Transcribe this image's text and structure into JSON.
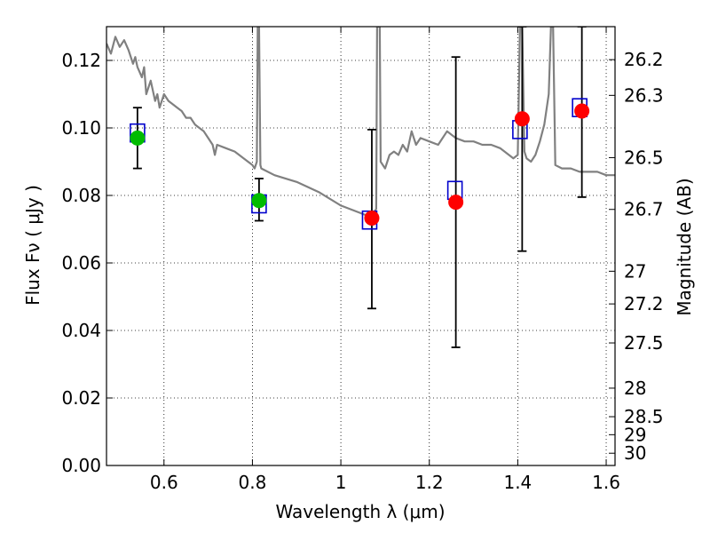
{
  "chart_data": {
    "type": "scatter",
    "xlabel": "Wavelength  λ (μm)",
    "ylabel": "Flux  Fν  ( μJy )",
    "y2label": "Magnitude (AB)",
    "xlim": [
      0.47,
      1.62
    ],
    "ylim": [
      0.0,
      0.13
    ],
    "xticks": [
      0.6,
      0.8,
      1.0,
      1.2,
      1.4,
      1.6
    ],
    "xtick_labels": [
      "0.6",
      "0.8",
      "1",
      "1.2",
      "1.4",
      "1.6"
    ],
    "yticks": [
      0.0,
      0.02,
      0.04,
      0.06,
      0.08,
      0.1,
      0.12
    ],
    "ytick_labels": [
      "0.00",
      "0.02",
      "0.04",
      "0.06",
      "0.08",
      "0.10",
      "0.12"
    ],
    "magnitude_ticks": [
      "26.2",
      "26.3",
      "26.5",
      "26.7",
      "27",
      "27.2",
      "27.5",
      "28",
      "28.5",
      "29",
      "30"
    ],
    "grid": true,
    "colors": {
      "template": "#808080",
      "photometry_green": "#00bb00",
      "photometry_red": "#ff0000",
      "model": "#0000cc",
      "errorbar": "#000000",
      "grid": "#000000"
    },
    "series": [
      {
        "name": "photometry-green",
        "marker": "circle",
        "x": [
          0.54,
          0.815
        ],
        "y": [
          0.097,
          0.0785
        ],
        "yerr_low": [
          0.088,
          0.0725
        ],
        "yerr_high": [
          0.106,
          0.085
        ]
      },
      {
        "name": "photometry-red",
        "marker": "circle",
        "x": [
          1.07,
          1.26,
          1.41,
          1.545
        ],
        "y": [
          0.0733,
          0.078,
          0.1027,
          0.105
        ],
        "yerr_low": [
          0.0465,
          0.035,
          0.0635,
          0.0795
        ],
        "yerr_high": [
          0.0995,
          0.121,
          0.13,
          0.13
        ]
      },
      {
        "name": "model-fluxes",
        "marker": "square",
        "x": [
          0.54,
          0.815,
          1.065,
          1.258,
          1.405,
          1.54
        ],
        "y": [
          0.0985,
          0.0775,
          0.0727,
          0.0815,
          0.0995,
          0.106
        ]
      },
      {
        "name": "template-spectrum",
        "style": "line",
        "points": [
          [
            0.47,
            0.125
          ],
          [
            0.48,
            0.122
          ],
          [
            0.49,
            0.127
          ],
          [
            0.5,
            0.124
          ],
          [
            0.51,
            0.126
          ],
          [
            0.52,
            0.123
          ],
          [
            0.53,
            0.119
          ],
          [
            0.535,
            0.121
          ],
          [
            0.54,
            0.118
          ],
          [
            0.55,
            0.115
          ],
          [
            0.555,
            0.118
          ],
          [
            0.56,
            0.11
          ],
          [
            0.57,
            0.114
          ],
          [
            0.58,
            0.108
          ],
          [
            0.585,
            0.11
          ],
          [
            0.59,
            0.106
          ],
          [
            0.6,
            0.11
          ],
          [
            0.61,
            0.108
          ],
          [
            0.62,
            0.107
          ],
          [
            0.63,
            0.106
          ],
          [
            0.64,
            0.105
          ],
          [
            0.65,
            0.103
          ],
          [
            0.66,
            0.103
          ],
          [
            0.67,
            0.101
          ],
          [
            0.68,
            0.1
          ],
          [
            0.69,
            0.099
          ],
          [
            0.7,
            0.097
          ],
          [
            0.71,
            0.095
          ],
          [
            0.715,
            0.092
          ],
          [
            0.72,
            0.095
          ],
          [
            0.74,
            0.094
          ],
          [
            0.76,
            0.093
          ],
          [
            0.78,
            0.091
          ],
          [
            0.8,
            0.089
          ],
          [
            0.805,
            0.088
          ],
          [
            0.81,
            0.09
          ],
          [
            0.812,
            0.13
          ],
          [
            0.815,
            0.13
          ],
          [
            0.818,
            0.089
          ],
          [
            0.82,
            0.088
          ],
          [
            0.85,
            0.086
          ],
          [
            0.9,
            0.084
          ],
          [
            0.95,
            0.081
          ],
          [
            1.0,
            0.077
          ],
          [
            1.04,
            0.075
          ],
          [
            1.06,
            0.074
          ],
          [
            1.07,
            0.074
          ],
          [
            1.08,
            0.076
          ],
          [
            1.082,
            0.13
          ],
          [
            1.088,
            0.13
          ],
          [
            1.09,
            0.09
          ],
          [
            1.1,
            0.088
          ],
          [
            1.11,
            0.092
          ],
          [
            1.12,
            0.093
          ],
          [
            1.13,
            0.092
          ],
          [
            1.14,
            0.095
          ],
          [
            1.15,
            0.093
          ],
          [
            1.16,
            0.099
          ],
          [
            1.17,
            0.095
          ],
          [
            1.18,
            0.097
          ],
          [
            1.2,
            0.096
          ],
          [
            1.22,
            0.095
          ],
          [
            1.24,
            0.099
          ],
          [
            1.26,
            0.097
          ],
          [
            1.28,
            0.096
          ],
          [
            1.3,
            0.096
          ],
          [
            1.32,
            0.095
          ],
          [
            1.34,
            0.095
          ],
          [
            1.36,
            0.094
          ],
          [
            1.38,
            0.092
          ],
          [
            1.39,
            0.091
          ],
          [
            1.4,
            0.092
          ],
          [
            1.405,
            0.13
          ],
          [
            1.41,
            0.13
          ],
          [
            1.415,
            0.093
          ],
          [
            1.42,
            0.091
          ],
          [
            1.43,
            0.09
          ],
          [
            1.44,
            0.092
          ],
          [
            1.45,
            0.096
          ],
          [
            1.46,
            0.101
          ],
          [
            1.47,
            0.11
          ],
          [
            1.475,
            0.13
          ],
          [
            1.48,
            0.13
          ],
          [
            1.485,
            0.089
          ],
          [
            1.5,
            0.088
          ],
          [
            1.52,
            0.088
          ],
          [
            1.54,
            0.087
          ],
          [
            1.56,
            0.087
          ],
          [
            1.58,
            0.087
          ],
          [
            1.6,
            0.086
          ],
          [
            1.62,
            0.086
          ]
        ]
      }
    ]
  }
}
